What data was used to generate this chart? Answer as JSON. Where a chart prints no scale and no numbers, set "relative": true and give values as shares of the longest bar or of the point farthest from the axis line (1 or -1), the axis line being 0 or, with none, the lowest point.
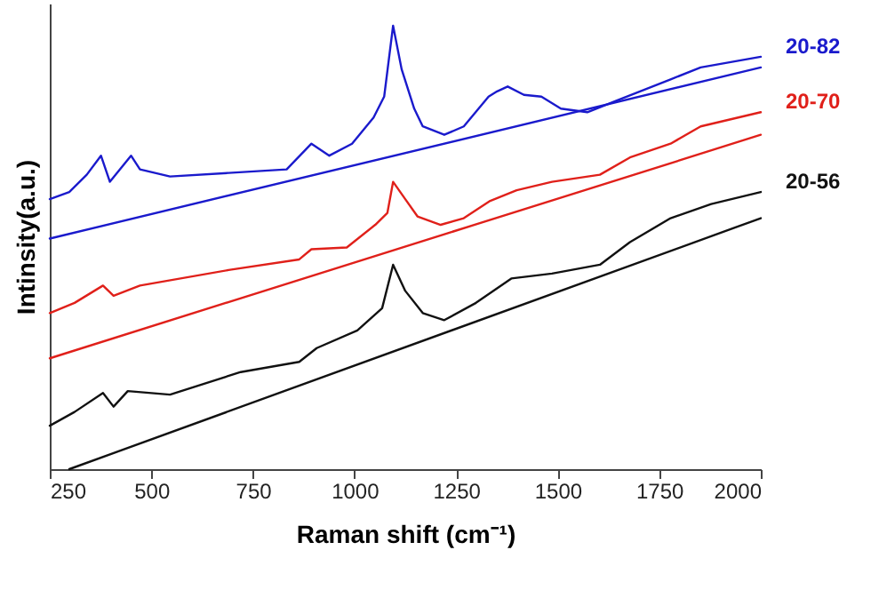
{
  "chart_data": {
    "type": "line",
    "xlabel": "Raman shift (cm⁻¹)",
    "ylabel": "Intinsity(a.u.)",
    "relative": true,
    "legend": false,
    "grid": false,
    "line_style": "solid",
    "xlim": [
      250,
      2000
    ],
    "xticks": [
      250,
      500,
      750,
      1000,
      1250,
      1500,
      1750,
      2000
    ],
    "series": [
      {
        "name": "20-82",
        "color": "#1a1acc",
        "x": [
          250,
          298,
          341,
          376,
          398,
          450,
          472,
          546,
          690,
          833,
          894,
          938,
          994,
          1047,
          1073,
          1095,
          1116,
          1147,
          1168,
          1221,
          1269,
          1330,
          1351,
          1377,
          1417,
          1460,
          1508,
          1573,
          1647,
          1778,
          1852,
          2000
        ],
        "values": [
          0.609,
          0.625,
          0.664,
          0.707,
          0.648,
          0.707,
          0.676,
          0.66,
          0.668,
          0.676,
          0.734,
          0.707,
          0.734,
          0.793,
          0.84,
          1.0,
          0.902,
          0.813,
          0.773,
          0.754,
          0.773,
          0.84,
          0.852,
          0.863,
          0.844,
          0.84,
          0.813,
          0.805,
          0.832,
          0.879,
          0.906,
          0.93
        ]
      },
      {
        "name": "20-70",
        "color": "#e0201a",
        "x": [
          250,
          311,
          381,
          407,
          472,
          690,
          864,
          894,
          981,
          1051,
          1081,
          1095,
          1125,
          1155,
          1212,
          1269,
          1334,
          1399,
          1486,
          1604,
          1678,
          1778,
          1852,
          2000
        ],
        "values": [
          0.352,
          0.375,
          0.414,
          0.391,
          0.414,
          0.449,
          0.473,
          0.496,
          0.5,
          0.551,
          0.578,
          0.648,
          0.609,
          0.57,
          0.551,
          0.566,
          0.605,
          0.629,
          0.648,
          0.664,
          0.703,
          0.734,
          0.773,
          0.805
        ]
      },
      {
        "name": "20-56",
        "color": "#111111",
        "x": [
          250,
          311,
          381,
          407,
          442,
          546,
          720,
          864,
          907,
          1007,
          1068,
          1095,
          1125,
          1168,
          1221,
          1299,
          1386,
          1486,
          1604,
          1678,
          1778,
          1878,
          2000
        ],
        "values": [
          0.098,
          0.129,
          0.172,
          0.141,
          0.176,
          0.168,
          0.219,
          0.242,
          0.273,
          0.313,
          0.363,
          0.461,
          0.402,
          0.352,
          0.336,
          0.375,
          0.43,
          0.441,
          0.461,
          0.512,
          0.566,
          0.598,
          0.625
        ]
      },
      {
        "color": "#1a1acc",
        "x": [
          250,
          2000
        ],
        "values": [
          0.52,
          0.906
        ]
      },
      {
        "color": "#e0201a",
        "x": [
          250,
          2000
        ],
        "values": [
          0.25,
          0.754
        ]
      },
      {
        "color": "#111111",
        "x": [
          298,
          2000
        ],
        "values": [
          0,
          0.566
        ]
      }
    ]
  }
}
